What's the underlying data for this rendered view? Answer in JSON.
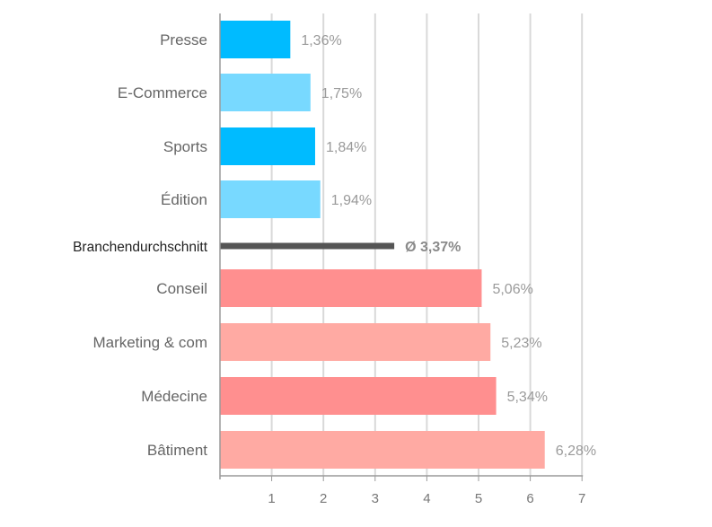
{
  "chart_data": {
    "type": "bar",
    "orientation": "horizontal",
    "xlim": [
      0,
      7
    ],
    "xticks": [
      "1",
      "2",
      "3",
      "4",
      "5",
      "6",
      "7"
    ],
    "grid": true,
    "categories": [
      {
        "label": "Presse",
        "value": 1.36,
        "value_label": "1,36%",
        "color": "#00bbff"
      },
      {
        "label": "E-Commerce",
        "value": 1.75,
        "value_label": "1,75%",
        "color": "#78d9ff"
      },
      {
        "label": "Sports",
        "value": 1.84,
        "value_label": "1,84%",
        "color": "#00bbff"
      },
      {
        "label": "Édition",
        "value": 1.94,
        "value_label": "1,94%",
        "color": "#78d9ff"
      },
      {
        "label": "Branchendurchschnitt",
        "value": 3.37,
        "value_label": "Ø 3,37%",
        "color": "#555555",
        "average": true
      },
      {
        "label": "Conseil",
        "value": 5.06,
        "value_label": "5,06%",
        "color": "#ff8f8f"
      },
      {
        "label": "Marketing & com",
        "value": 5.23,
        "value_label": "5,23%",
        "color": "#ffaaa3"
      },
      {
        "label": "Médecine",
        "value": 5.34,
        "value_label": "5,34%",
        "color": "#ff8f8f"
      },
      {
        "label": "Bâtiment",
        "value": 6.28,
        "value_label": "6,28%",
        "color": "#ffaaa3"
      }
    ]
  }
}
